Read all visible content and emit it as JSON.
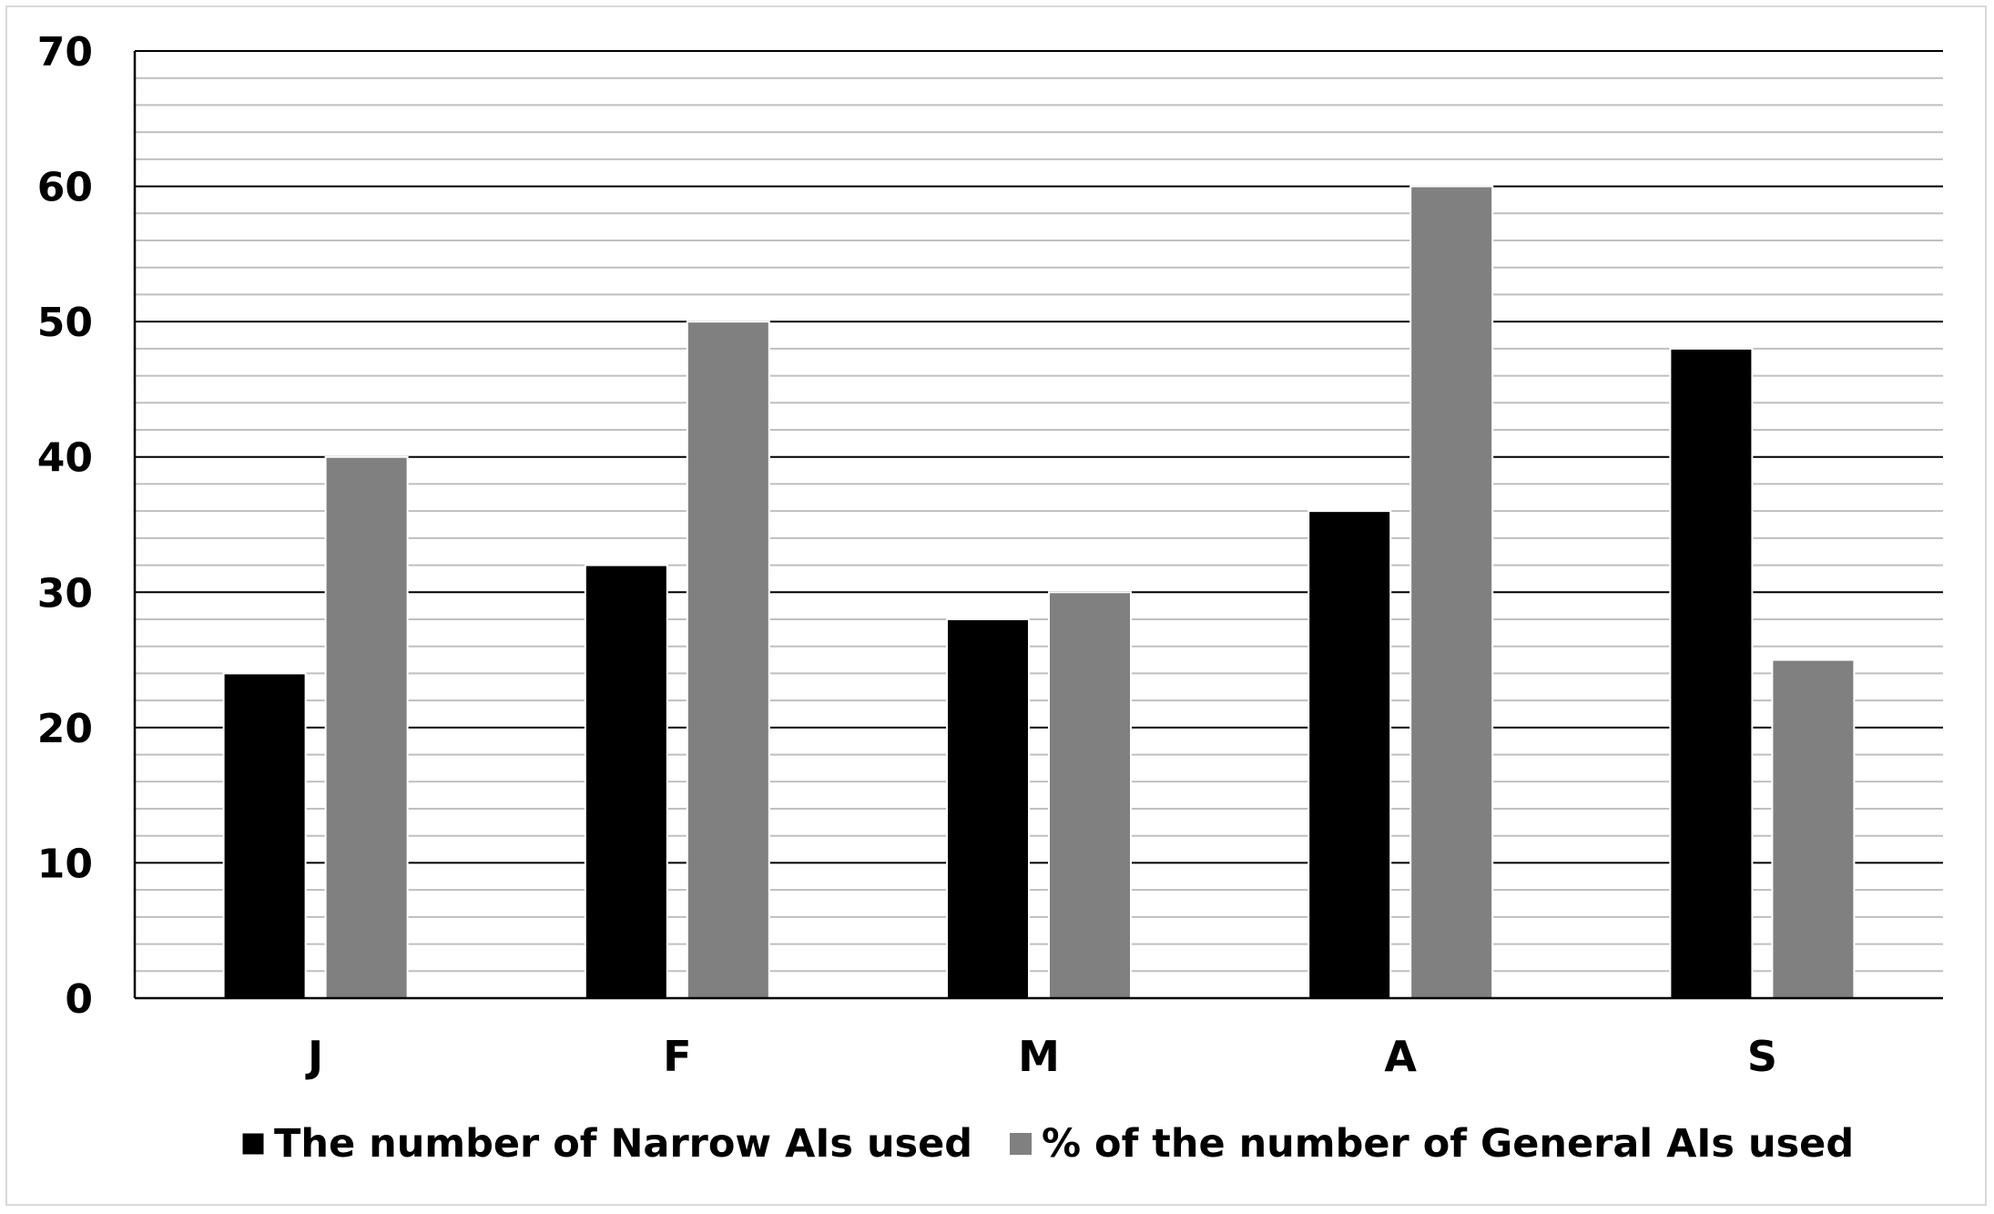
{
  "chart_data": {
    "type": "bar",
    "title": "",
    "xlabel": "",
    "ylabel": "",
    "categories": [
      "J",
      "F",
      "M",
      "A",
      "S"
    ],
    "series": [
      {
        "name": "The number of Narrow AIs used",
        "values": [
          24,
          32,
          28,
          36,
          48
        ],
        "color": "#000000"
      },
      {
        "name": "% of the number of General AIs used",
        "values": [
          40,
          50,
          30,
          60,
          25
        ],
        "color": "#808080"
      }
    ],
    "ylim": [
      0,
      70
    ],
    "yticks": [
      "0",
      "10",
      "20",
      "30",
      "40",
      "50",
      "60",
      "70"
    ],
    "grid": true,
    "legend_position": "bottom"
  }
}
